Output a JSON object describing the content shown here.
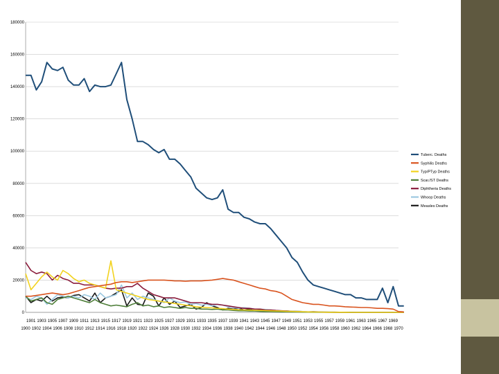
{
  "slide": {
    "sidebar_color": "#5f5940",
    "accent_color": "#c8c3a0"
  },
  "chart_data": {
    "type": "line",
    "title": "",
    "xlabel": "",
    "ylabel": "",
    "ylim": [
      0,
      180000
    ],
    "yticks": [
      "0",
      "20000",
      "40000",
      "60000",
      "80000",
      "100000",
      "120000",
      "140000",
      "160000",
      "180000"
    ],
    "grid": true,
    "legend_position": "right",
    "xticks_odd": [
      "1901",
      "1903",
      "1905",
      "1907",
      "1909",
      "1911",
      "1913",
      "1915",
      "1917",
      "1919",
      "1921",
      "1923",
      "1925",
      "1927",
      "1929",
      "1931",
      "1933",
      "1935",
      "1937",
      "1939",
      "1941",
      "1943",
      "1945",
      "1947",
      "1949",
      "1951",
      "1953",
      "1955",
      "1957",
      "1959",
      "1961",
      "1963",
      "1965",
      "1967",
      "1969"
    ],
    "xticks_even": [
      "1900",
      "1902",
      "1904",
      "1906",
      "1908",
      "1910",
      "1912",
      "1914",
      "1916",
      "1918",
      "1920",
      "1922",
      "1924",
      "1926",
      "1928",
      "1930",
      "1932",
      "1934",
      "1936",
      "1938",
      "1940",
      "1942",
      "1944",
      "1946",
      "1948",
      "1950",
      "1952",
      "1954",
      "1956",
      "1958",
      "1960",
      "1962",
      "1964",
      "1966",
      "1968",
      "1970"
    ],
    "x_start": 1900,
    "x_end": 1970,
    "series": [
      {
        "name": "Tuberc. Deaths",
        "color": "#1f4e79",
        "values": [
          147000,
          147000,
          138000,
          143000,
          155000,
          151000,
          150000,
          152000,
          144000,
          141000,
          141000,
          145000,
          137000,
          141000,
          140000,
          140000,
          141000,
          148000,
          155000,
          132000,
          120000,
          106000,
          106000,
          104000,
          101000,
          99000,
          101000,
          95000,
          95000,
          92000,
          88000,
          84000,
          77000,
          74000,
          71000,
          70000,
          71000,
          76000,
          64000,
          62000,
          62000,
          59000,
          58000,
          56000,
          55000,
          55000,
          52000,
          48000,
          44000,
          40000,
          34000,
          31000,
          25000,
          20000,
          17000,
          16000,
          15000,
          14000,
          13000,
          12000,
          11000,
          11000,
          9000,
          9000,
          8000,
          8000,
          8000,
          15000,
          6000,
          16000,
          4000,
          4000
        ]
      },
      {
        "name": "Syphilis Deaths",
        "color": "#d9531e",
        "values": [
          10000,
          10000,
          10500,
          11000,
          11500,
          12000,
          11500,
          11000,
          11500,
          12500,
          13500,
          14500,
          15500,
          16000,
          16500,
          17000,
          17500,
          18500,
          19000,
          19000,
          18500,
          19000,
          19500,
          20000,
          20000,
          20000,
          20000,
          19800,
          19500,
          19500,
          19300,
          19500,
          19500,
          19500,
          19800,
          20000,
          20500,
          21000,
          20500,
          20000,
          19000,
          18000,
          17000,
          16000,
          15000,
          14500,
          13500,
          13000,
          12000,
          10000,
          8000,
          7000,
          6000,
          5500,
          5000,
          5000,
          4500,
          4000,
          4000,
          3800,
          3500,
          3300,
          3200,
          3000,
          3000,
          2800,
          2500,
          2500,
          2300,
          2000,
          500,
          300
        ]
      },
      {
        "name": "Typ/PTyp Deaths",
        "color": "#f2d21d",
        "values": [
          24000,
          14000,
          18000,
          22000,
          25000,
          22000,
          20000,
          26000,
          24000,
          21000,
          19000,
          20000,
          18000,
          17000,
          16000,
          15000,
          32000,
          14000,
          13000,
          12000,
          11000,
          10000,
          9000,
          8000,
          7500,
          7000,
          6500,
          6000,
          5500,
          5000,
          4500,
          4000,
          3500,
          3200,
          3000,
          2800,
          2500,
          2300,
          2000,
          1800,
          1600,
          1500,
          1400,
          1300,
          1200,
          1100,
          1000,
          900,
          800,
          700,
          600,
          500,
          400,
          300,
          250,
          200,
          150,
          100,
          100,
          100,
          50,
          0,
          0,
          0,
          0,
          0,
          0,
          0,
          0,
          0,
          0,
          0
        ]
      },
      {
        "name": "Scar./ST Deaths",
        "color": "#4f7f3a",
        "values": [
          10000,
          7000,
          8000,
          9000,
          6000,
          5000,
          8000,
          9000,
          10000,
          9000,
          8000,
          7000,
          6000,
          8000,
          6000,
          5000,
          4000,
          4500,
          4000,
          3500,
          5000,
          6000,
          4000,
          4500,
          3500,
          4000,
          3000,
          3500,
          3000,
          2500,
          3000,
          2500,
          2500,
          2000,
          2000,
          1800,
          2000,
          1500,
          1500,
          1200,
          1000,
          1000,
          800,
          800,
          600,
          500,
          500,
          400,
          300,
          300,
          200,
          200,
          150,
          150,
          100,
          100,
          80,
          60,
          50,
          40,
          30,
          30,
          20,
          20,
          10,
          10,
          10,
          10,
          10,
          0,
          0,
          0
        ]
      },
      {
        "name": "Diphtheria Deaths",
        "color": "#8a1c3c",
        "values": [
          31000,
          26000,
          24000,
          25000,
          24000,
          20000,
          23000,
          21000,
          20000,
          18000,
          18000,
          17000,
          17000,
          17000,
          16000,
          15000,
          14500,
          15000,
          15000,
          16000,
          16000,
          18000,
          15000,
          13000,
          11000,
          10000,
          9000,
          9000,
          9000,
          8000,
          7000,
          6000,
          6000,
          6000,
          5500,
          5000,
          5000,
          4500,
          4000,
          3500,
          3000,
          2500,
          2500,
          2000,
          2000,
          1500,
          1500,
          1200,
          1000,
          800,
          600,
          500,
          300,
          300,
          200,
          150,
          100,
          100,
          50,
          50,
          50,
          30,
          20,
          20,
          10,
          10,
          10,
          10,
          10,
          0,
          0,
          0
        ]
      },
      {
        "name": "Whoop Deaths",
        "color": "#9cc8e0",
        "values": [
          9000,
          8000,
          10000,
          9000,
          5000,
          8000,
          11000,
          10000,
          9000,
          10000,
          9000,
          11000,
          10000,
          8000,
          12000,
          9000,
          10000,
          11000,
          17000,
          9000,
          12000,
          8000,
          10000,
          9000,
          8000,
          7000,
          6000,
          9000,
          7000,
          6000,
          6500,
          5000,
          5500,
          4500,
          5000,
          4000,
          5000,
          4500,
          3500,
          3000,
          2500,
          3000,
          2500,
          2000,
          2000,
          1800,
          1500,
          1200,
          1000,
          800,
          700,
          600,
          500,
          400,
          300,
          250,
          200,
          150,
          100,
          100,
          80,
          60,
          50,
          40,
          30,
          20,
          20,
          10,
          10,
          10,
          10,
          10
        ]
      },
      {
        "name": "Measles Deaths",
        "color": "#1a1a1a",
        "values": [
          10000,
          6000,
          8000,
          7000,
          10000,
          7000,
          9000,
          9500,
          9000,
          10500,
          11000,
          9000,
          7000,
          12000,
          6000,
          9000,
          10000,
          12000,
          14000,
          4000,
          9000,
          5000,
          4500,
          12000,
          10000,
          4000,
          9000,
          5000,
          7000,
          3000,
          4000,
          5000,
          2000,
          3000,
          6000,
          4000,
          3000,
          1500,
          2500,
          2000,
          2500,
          1500,
          2000,
          1000,
          1500,
          800,
          1200,
          800,
          600,
          800,
          700,
          600,
          500,
          300,
          400,
          300,
          200,
          150,
          150,
          100,
          80,
          60,
          50,
          40,
          30,
          20,
          20,
          10,
          10,
          10,
          10,
          10
        ]
      }
    ]
  }
}
